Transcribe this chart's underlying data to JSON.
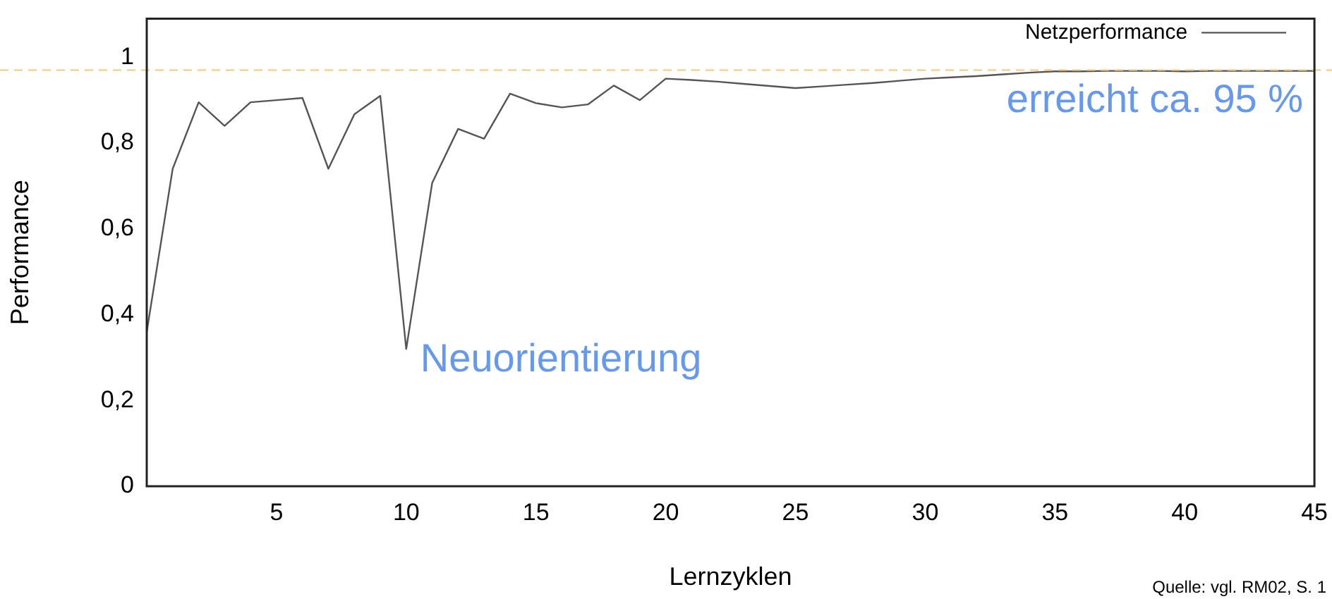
{
  "chart_data": {
    "type": "line",
    "xlabel": "Lernzyklen",
    "ylabel": "Performance",
    "x": [
      0,
      1,
      2,
      3,
      4,
      5,
      6,
      7,
      8,
      9,
      10,
      11,
      12,
      13,
      14,
      15,
      16,
      17,
      18,
      19,
      20,
      21,
      22,
      23,
      24,
      25,
      26,
      27,
      28,
      29,
      30,
      31,
      32,
      33,
      34,
      35,
      36,
      37,
      38,
      39,
      40,
      41,
      42,
      43,
      44,
      45
    ],
    "series": [
      {
        "name": "Netzperformance",
        "color": "#555555",
        "values": [
          0.36,
          0.74,
          0.895,
          0.84,
          0.895,
          0.9,
          0.905,
          0.74,
          0.867,
          0.91,
          0.32,
          0.707,
          0.833,
          0.81,
          0.915,
          0.893,
          0.883,
          0.89,
          0.934,
          0.9,
          0.95,
          0.947,
          0.943,
          0.938,
          0.933,
          0.928,
          0.932,
          0.936,
          0.94,
          0.945,
          0.95,
          0.953,
          0.956,
          0.96,
          0.964,
          0.967,
          0.967,
          0.968,
          0.968,
          0.968,
          0.967,
          0.968,
          0.968,
          0.968,
          0.968,
          0.968
        ]
      }
    ],
    "xlim": [
      0,
      45
    ],
    "xticks": [
      5,
      10,
      15,
      20,
      25,
      30,
      35,
      40,
      45
    ],
    "ylim": [
      0,
      1.09
    ],
    "yticks": [
      0,
      {
        "value": 0.2,
        "label": "0,2"
      },
      {
        "value": 0.4,
        "label": "0,4"
      },
      {
        "value": 0.6,
        "label": "0,6"
      },
      {
        "value": 0.8,
        "label": "0,8"
      },
      1
    ],
    "ref_lines": [
      {
        "axis": "y",
        "value": 0.97,
        "label": "erreicht ca. 95 %",
        "color": "#f5c97a",
        "line_style": "dashed"
      }
    ],
    "annotations": [
      {
        "text": "Neuorientierung",
        "x": 10,
        "y": 0.32
      },
      "Quelle: vgl. RM02, S. 1"
    ],
    "legend": "top right",
    "marker": "none",
    "line_style": "solid",
    "grid": false
  }
}
